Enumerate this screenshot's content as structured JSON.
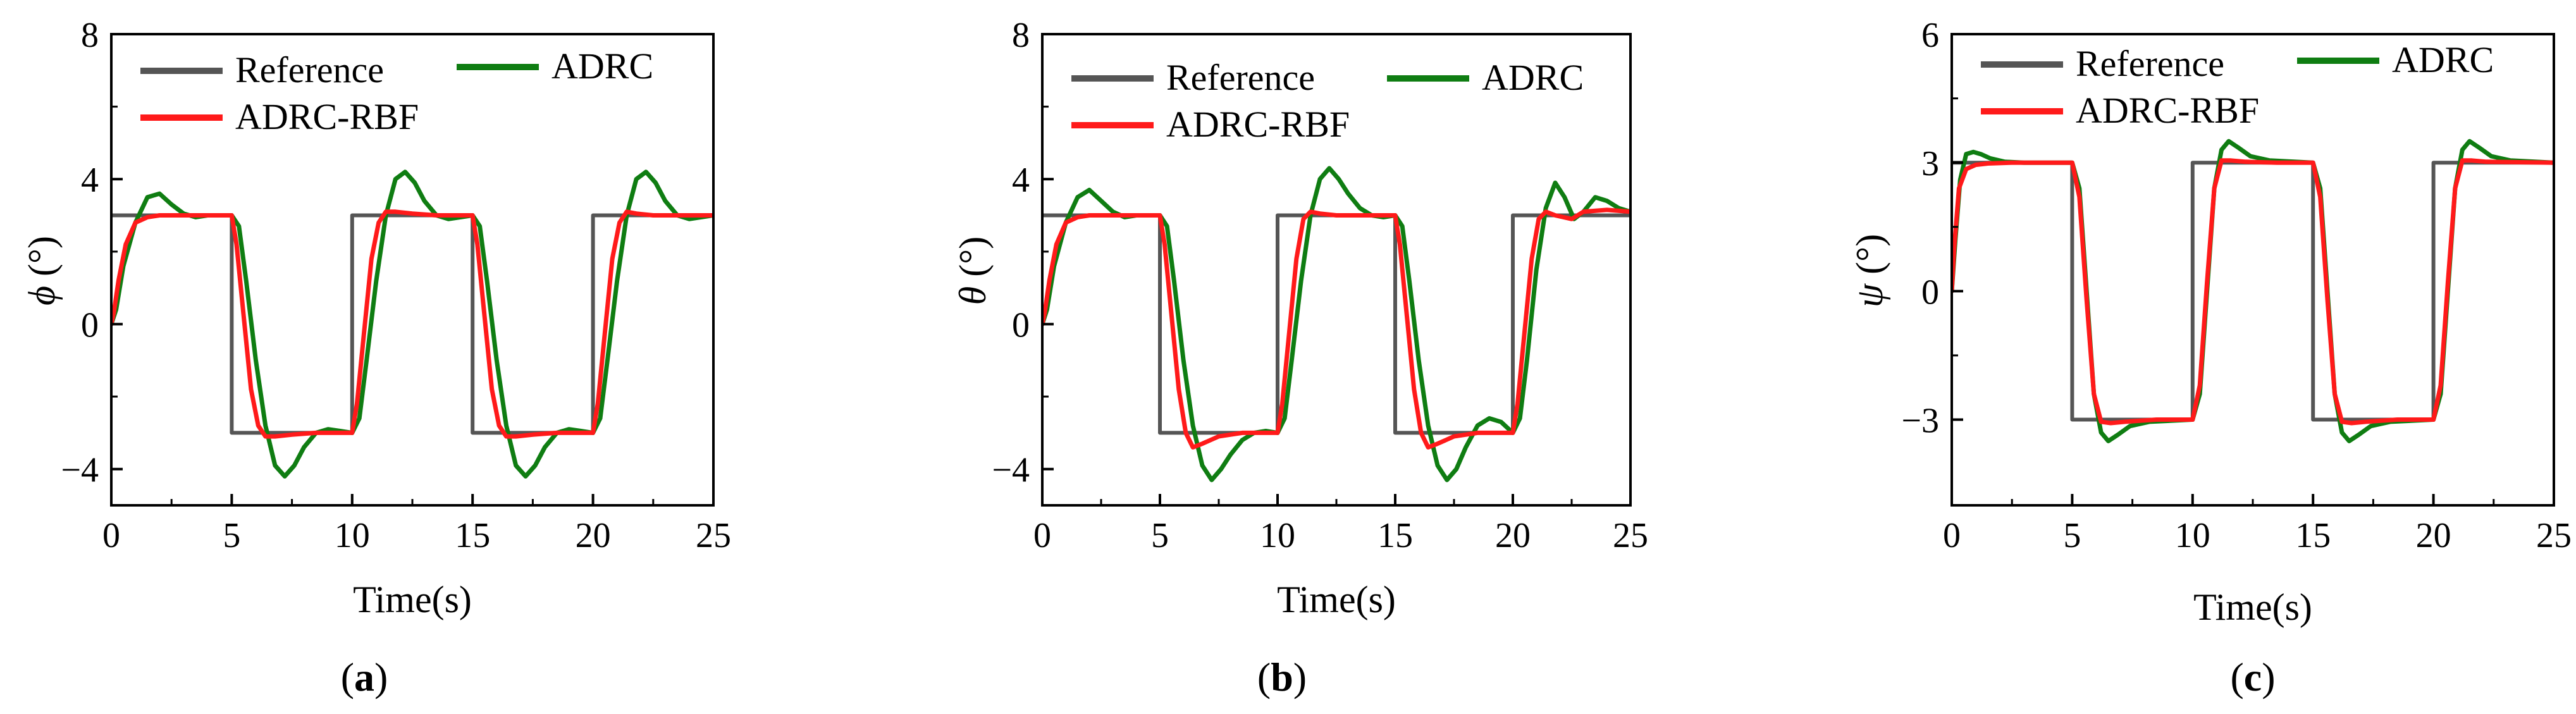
{
  "figure": {
    "time_unit_label": "Time(s)",
    "legend": [
      "Reference",
      "ADRC",
      "ADRC-RBF"
    ],
    "colors": {
      "reference": "#555555",
      "adrc": "#0f7d12",
      "adrc_rbf": "#ff1a1a",
      "axis": "#000000"
    }
  },
  "chart_data": [
    {
      "type": "line",
      "panel": "a",
      "caption_open": "(",
      "caption_letter": "a",
      "caption_close": ")",
      "ylabel_symbol": "ϕ",
      "ylabel_unit": " (°)",
      "xlabel": "Time(s)",
      "xlim": [
        0,
        25
      ],
      "ylim": [
        -5,
        8
      ],
      "xticks": [
        0,
        5,
        10,
        15,
        20,
        25
      ],
      "yticks": [
        -4,
        0,
        4,
        8
      ],
      "ytick_labels": [
        "−4",
        "0",
        "4",
        "8"
      ],
      "series": [
        {
          "name": "Reference",
          "color": "#555555",
          "x": [
            0,
            5,
            5,
            10,
            10,
            15,
            15,
            20,
            20,
            25
          ],
          "y": [
            3,
            3,
            -3,
            -3,
            3,
            3,
            -3,
            -3,
            3,
            3
          ]
        },
        {
          "name": "ADRC",
          "color": "#0f7d12",
          "x": [
            0,
            0.2,
            0.5,
            1.0,
            1.5,
            2.0,
            2.5,
            3.0,
            3.5,
            4.0,
            4.5,
            5.0,
            5.3,
            5.6,
            6.0,
            6.4,
            6.8,
            7.2,
            7.6,
            8.0,
            8.5,
            9.0,
            9.5,
            10.0,
            10.3,
            10.6,
            11.0,
            11.4,
            11.8,
            12.2,
            12.6,
            13.0,
            13.5,
            14.0,
            14.5,
            15.0,
            15.3,
            15.6,
            16.0,
            16.4,
            16.8,
            17.2,
            17.6,
            18.0,
            18.5,
            19.0,
            19.5,
            20.0,
            20.3,
            20.6,
            21.0,
            21.4,
            21.8,
            22.2,
            22.6,
            23.0,
            23.5,
            24.0,
            25.0
          ],
          "y": [
            0,
            0.4,
            1.6,
            2.8,
            3.5,
            3.6,
            3.3,
            3.05,
            2.95,
            3.0,
            3.0,
            3.0,
            2.7,
            1.2,
            -1.0,
            -2.8,
            -3.9,
            -4.2,
            -3.9,
            -3.4,
            -3.0,
            -2.9,
            -2.95,
            -3.0,
            -2.6,
            -1.0,
            1.2,
            3.0,
            4.0,
            4.2,
            3.9,
            3.4,
            3.0,
            2.9,
            2.95,
            3.0,
            2.7,
            1.2,
            -1.0,
            -2.8,
            -3.9,
            -4.2,
            -3.9,
            -3.4,
            -3.0,
            -2.9,
            -2.95,
            -3.0,
            -2.6,
            -1.0,
            1.2,
            3.0,
            4.0,
            4.2,
            3.9,
            3.4,
            3.0,
            2.9,
            3.0
          ]
        },
        {
          "name": "ADRC-RBF",
          "color": "#ff1a1a",
          "x": [
            0,
            0.1,
            0.3,
            0.6,
            1.0,
            1.5,
            2.0,
            3.0,
            4.0,
            5.0,
            5.2,
            5.5,
            5.8,
            6.1,
            6.4,
            6.8,
            7.5,
            8.5,
            10.0,
            10.2,
            10.5,
            10.8,
            11.1,
            11.4,
            11.8,
            12.5,
            13.5,
            15.0,
            15.2,
            15.5,
            15.8,
            16.1,
            16.4,
            16.8,
            17.5,
            18.5,
            20.0,
            20.2,
            20.5,
            20.8,
            21.1,
            21.4,
            21.8,
            22.5,
            25.0
          ],
          "y": [
            0,
            0.3,
            1.2,
            2.2,
            2.8,
            2.95,
            3.0,
            3.0,
            3.0,
            3.0,
            2.2,
            0.2,
            -1.8,
            -2.8,
            -3.1,
            -3.1,
            -3.05,
            -3.0,
            -3.0,
            -2.2,
            -0.2,
            1.8,
            2.8,
            3.1,
            3.1,
            3.05,
            3.0,
            3.0,
            2.2,
            0.2,
            -1.8,
            -2.8,
            -3.1,
            -3.1,
            -3.05,
            -3.0,
            -3.0,
            -2.2,
            -0.2,
            1.8,
            2.8,
            3.1,
            3.05,
            3.0,
            3.0
          ]
        }
      ]
    },
    {
      "type": "line",
      "panel": "b",
      "caption_open": "(",
      "caption_letter": "b",
      "caption_close": ")",
      "ylabel_symbol": "θ",
      "ylabel_unit": " (°)",
      "xlabel": "Time(s)",
      "xlim": [
        0,
        25
      ],
      "ylim": [
        -5,
        8
      ],
      "xticks": [
        0,
        5,
        10,
        15,
        20,
        25
      ],
      "yticks": [
        -4,
        0,
        4,
        8
      ],
      "ytick_labels": [
        "−4",
        "0",
        "4",
        "8"
      ],
      "series": [
        {
          "name": "Reference",
          "color": "#555555",
          "x": [
            0,
            5,
            5,
            10,
            10,
            15,
            15,
            20,
            20,
            25
          ],
          "y": [
            3,
            3,
            -3,
            -3,
            3,
            3,
            -3,
            -3,
            3,
            3
          ]
        },
        {
          "name": "ADRC",
          "color": "#0f7d12",
          "x": [
            0,
            0.2,
            0.5,
            1.0,
            1.5,
            2.0,
            2.5,
            3.0,
            3.5,
            4.0,
            4.5,
            5.0,
            5.3,
            5.6,
            6.0,
            6.4,
            6.8,
            7.2,
            7.6,
            8.0,
            8.5,
            9.0,
            9.5,
            10.0,
            10.3,
            10.6,
            11.0,
            11.4,
            11.8,
            12.2,
            12.6,
            13.0,
            13.5,
            14.0,
            14.5,
            15.0,
            15.3,
            15.6,
            16.0,
            16.4,
            16.8,
            17.2,
            17.6,
            18.0,
            18.5,
            19.0,
            19.5,
            20.0,
            20.3,
            20.6,
            21.0,
            21.4,
            21.8,
            22.2,
            22.6,
            23.0,
            23.5,
            24.0,
            24.5,
            25.0
          ],
          "y": [
            0,
            0.4,
            1.6,
            2.8,
            3.5,
            3.7,
            3.4,
            3.1,
            2.95,
            3.0,
            3.0,
            3.0,
            2.7,
            1.2,
            -1.0,
            -2.8,
            -3.9,
            -4.3,
            -4.0,
            -3.6,
            -3.2,
            -3.0,
            -2.95,
            -3.0,
            -2.6,
            -1.0,
            1.2,
            3.0,
            4.0,
            4.3,
            4.0,
            3.6,
            3.2,
            3.0,
            2.95,
            3.0,
            2.7,
            1.2,
            -1.0,
            -2.8,
            -3.9,
            -4.3,
            -4.0,
            -3.4,
            -2.8,
            -2.6,
            -2.7,
            -3.0,
            -2.6,
            -1.0,
            1.5,
            3.2,
            3.9,
            3.5,
            2.9,
            3.1,
            3.5,
            3.4,
            3.2,
            3.1
          ]
        },
        {
          "name": "ADRC-RBF",
          "color": "#ff1a1a",
          "x": [
            0,
            0.1,
            0.3,
            0.6,
            1.0,
            1.5,
            2.0,
            3.0,
            4.0,
            5.0,
            5.2,
            5.5,
            5.8,
            6.1,
            6.4,
            6.8,
            7.5,
            8.5,
            10.0,
            10.2,
            10.5,
            10.8,
            11.1,
            11.4,
            11.8,
            12.5,
            13.5,
            15.0,
            15.2,
            15.5,
            15.8,
            16.1,
            16.4,
            16.8,
            17.5,
            18.5,
            20.0,
            20.2,
            20.5,
            20.8,
            21.1,
            21.4,
            21.8,
            22.5,
            23.0,
            24.0,
            25.0
          ],
          "y": [
            0,
            0.3,
            1.2,
            2.2,
            2.8,
            2.95,
            3.0,
            3.0,
            3.0,
            3.0,
            2.2,
            0.2,
            -1.8,
            -3.0,
            -3.4,
            -3.3,
            -3.1,
            -3.0,
            -3.0,
            -2.2,
            -0.2,
            1.8,
            2.9,
            3.1,
            3.05,
            3.0,
            3.0,
            3.0,
            2.2,
            0.2,
            -1.8,
            -3.0,
            -3.4,
            -3.3,
            -3.1,
            -3.0,
            -3.0,
            -2.2,
            -0.2,
            1.8,
            2.9,
            3.1,
            3.0,
            2.9,
            3.1,
            3.15,
            3.1
          ]
        }
      ]
    },
    {
      "type": "line",
      "panel": "c",
      "caption_open": "(",
      "caption_letter": "c",
      "caption_close": ")",
      "ylabel_symbol": "ψ",
      "ylabel_unit": " (°)",
      "xlabel": "Time(s)",
      "xlim": [
        0,
        25
      ],
      "ylim": [
        -5,
        6
      ],
      "xticks": [
        0,
        5,
        10,
        15,
        20,
        25
      ],
      "yticks": [
        -3,
        0,
        3,
        6
      ],
      "ytick_labels": [
        "−3",
        "0",
        "3",
        "6"
      ],
      "series": [
        {
          "name": "Reference",
          "color": "#555555",
          "x": [
            0,
            5,
            5,
            10,
            10,
            15,
            15,
            20,
            20,
            25
          ],
          "y": [
            3,
            3,
            -3,
            -3,
            3,
            3,
            -3,
            -3,
            3,
            3
          ]
        },
        {
          "name": "ADRC",
          "color": "#0f7d12",
          "x": [
            0,
            0.15,
            0.35,
            0.6,
            0.9,
            1.2,
            1.6,
            2.2,
            3.0,
            5.0,
            5.3,
            5.6,
            5.9,
            6.2,
            6.5,
            6.9,
            7.4,
            8.2,
            10.0,
            10.3,
            10.6,
            10.9,
            11.2,
            11.5,
            11.9,
            12.4,
            13.2,
            15.0,
            15.3,
            15.6,
            15.9,
            16.2,
            16.5,
            16.9,
            17.4,
            18.2,
            20.0,
            20.3,
            20.6,
            20.9,
            21.2,
            21.5,
            21.9,
            22.4,
            23.2,
            25.0
          ],
          "y": [
            0,
            1.2,
            2.6,
            3.2,
            3.25,
            3.2,
            3.1,
            3.02,
            3.0,
            3.0,
            2.4,
            0.0,
            -2.4,
            -3.3,
            -3.5,
            -3.35,
            -3.15,
            -3.05,
            -3.0,
            -2.4,
            0.0,
            2.4,
            3.3,
            3.5,
            3.35,
            3.15,
            3.05,
            3.0,
            2.4,
            0.0,
            -2.4,
            -3.3,
            -3.5,
            -3.35,
            -3.15,
            -3.05,
            -3.0,
            -2.4,
            0.0,
            2.4,
            3.3,
            3.5,
            3.35,
            3.15,
            3.05,
            3.0
          ]
        },
        {
          "name": "ADRC-RBF",
          "color": "#ff1a1a",
          "x": [
            0,
            0.1,
            0.3,
            0.6,
            1.0,
            1.5,
            2.5,
            5.0,
            5.3,
            5.6,
            5.9,
            6.2,
            6.6,
            7.2,
            8.5,
            10.0,
            10.3,
            10.6,
            10.9,
            11.2,
            11.6,
            12.2,
            13.5,
            15.0,
            15.3,
            15.6,
            15.9,
            16.2,
            16.6,
            17.2,
            18.5,
            20.0,
            20.3,
            20.6,
            20.9,
            21.2,
            21.6,
            22.2,
            25.0
          ],
          "y": [
            0,
            1.0,
            2.4,
            2.85,
            2.95,
            2.98,
            3.0,
            3.0,
            2.2,
            -0.2,
            -2.4,
            -3.05,
            -3.08,
            -3.05,
            -3.0,
            -3.0,
            -2.2,
            0.2,
            2.4,
            3.05,
            3.05,
            3.02,
            3.0,
            3.0,
            2.2,
            -0.2,
            -2.4,
            -3.05,
            -3.08,
            -3.05,
            -3.0,
            -3.0,
            -2.2,
            0.2,
            2.4,
            3.05,
            3.05,
            3.02,
            3.0
          ]
        }
      ]
    }
  ]
}
